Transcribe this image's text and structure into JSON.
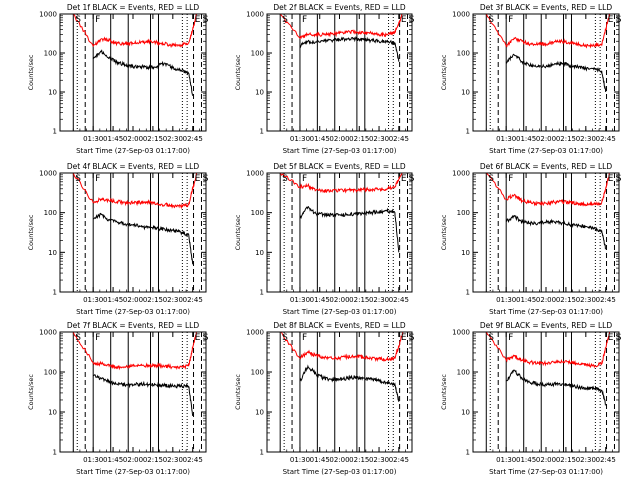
{
  "colors": {
    "black_series": "#000000",
    "red_series": "#ff0000",
    "axis": "#000000",
    "background": "#ffffff"
  },
  "chart_data": [
    {
      "type": "line",
      "title": "Det 1f BLACK = Events, RED = LLD",
      "xlabel": "Start Time (27-Sep-03 01:17:00)",
      "ylabel": "Counts/sec",
      "y_scale": "log",
      "ylim": [
        1,
        1000
      ],
      "x_ticks": [
        "01:30",
        "01:45",
        "02:00",
        "02:15",
        "02:30",
        "02:45"
      ],
      "y_ticks": [
        "1",
        "10",
        "100",
        "1000"
      ],
      "markers": [
        "S",
        "F",
        "E",
        "S"
      ],
      "x": [
        1.25,
        1.5,
        1.6,
        1.7,
        1.8,
        1.9,
        2.0,
        2.1,
        2.2,
        2.3,
        2.4,
        2.5,
        2.6,
        2.7,
        2.75,
        2.8
      ],
      "series": [
        {
          "name": "Events",
          "color": "#000000",
          "values": [
            null,
            70,
            110,
            75,
            58,
            50,
            45,
            45,
            42,
            45,
            55,
            42,
            36,
            30,
            8,
            null
          ]
        },
        {
          "name": "LLD",
          "color": "#ff0000",
          "values": [
            1000,
            150,
            230,
            210,
            180,
            170,
            175,
            190,
            200,
            185,
            170,
            155,
            160,
            180,
            400,
            1000
          ]
        }
      ]
    },
    {
      "type": "line",
      "title": "Det 2f BLACK = Events, RED = LLD",
      "xlabel": "Start Time (27-Sep-03 01:17:00)",
      "ylabel": "Counts/sec",
      "y_scale": "log",
      "ylim": [
        1,
        1000
      ],
      "x_ticks": [
        "01:30",
        "01:45",
        "02:00",
        "02:15",
        "02:30",
        "02:45"
      ],
      "y_ticks": [
        "1",
        "10",
        "100",
        "1000"
      ],
      "markers": [
        "S",
        "F",
        "E",
        "S"
      ],
      "x": [
        1.25,
        1.5,
        1.6,
        1.7,
        1.8,
        1.9,
        2.0,
        2.1,
        2.2,
        2.3,
        2.4,
        2.5,
        2.6,
        2.7,
        2.75,
        2.8
      ],
      "series": [
        {
          "name": "Events",
          "color": "#000000",
          "values": [
            null,
            150,
            200,
            190,
            200,
            210,
            220,
            230,
            230,
            220,
            210,
            200,
            190,
            180,
            60,
            null
          ]
        },
        {
          "name": "LLD",
          "color": "#ff0000",
          "values": [
            1000,
            240,
            300,
            290,
            300,
            310,
            320,
            340,
            350,
            330,
            320,
            300,
            290,
            340,
            600,
            1000
          ]
        }
      ]
    },
    {
      "type": "line",
      "title": "Det 3f BLACK = Events, RED = LLD",
      "xlabel": "Start Time (27-Sep-03 01:17:00)",
      "ylabel": "Counts/sec",
      "y_scale": "log",
      "ylim": [
        1,
        1000
      ],
      "x_ticks": [
        "01:30",
        "01:45",
        "02:00",
        "02:15",
        "02:30",
        "02:45"
      ],
      "y_ticks": [
        "1",
        "10",
        "100",
        "1000"
      ],
      "markers": [
        "S",
        "F",
        "E",
        "S"
      ],
      "x": [
        1.25,
        1.5,
        1.6,
        1.7,
        1.8,
        1.9,
        2.0,
        2.1,
        2.2,
        2.3,
        2.4,
        2.5,
        2.6,
        2.7,
        2.75,
        2.8
      ],
      "series": [
        {
          "name": "Events",
          "color": "#000000",
          "values": [
            null,
            60,
            90,
            60,
            48,
            45,
            45,
            50,
            55,
            48,
            45,
            40,
            38,
            35,
            10,
            null
          ]
        },
        {
          "name": "LLD",
          "color": "#ff0000",
          "values": [
            1000,
            150,
            240,
            200,
            170,
            165,
            170,
            190,
            200,
            180,
            165,
            150,
            155,
            170,
            400,
            1000
          ]
        }
      ]
    },
    {
      "type": "line",
      "title": "Det 4f BLACK = Events, RED = LLD",
      "xlabel": "Start Time (27-Sep-03 01:17:00)",
      "ylabel": "Counts/sec",
      "y_scale": "log",
      "ylim": [
        1,
        1000
      ],
      "x_ticks": [
        "01:30",
        "01:45",
        "02:00",
        "02:15",
        "02:30",
        "02:45"
      ],
      "y_ticks": [
        "1",
        "10",
        "100",
        "1000"
      ],
      "markers": [
        "S",
        "F",
        "E",
        "S"
      ],
      "x": [
        1.25,
        1.5,
        1.6,
        1.7,
        1.8,
        1.9,
        2.0,
        2.1,
        2.2,
        2.3,
        2.4,
        2.5,
        2.6,
        2.7,
        2.75,
        2.8
      ],
      "series": [
        {
          "name": "Events",
          "color": "#000000",
          "values": [
            null,
            70,
            90,
            65,
            58,
            52,
            50,
            45,
            42,
            40,
            38,
            36,
            32,
            28,
            5,
            null
          ]
        },
        {
          "name": "LLD",
          "color": "#ff0000",
          "values": [
            1000,
            180,
            220,
            200,
            190,
            180,
            175,
            180,
            185,
            170,
            160,
            150,
            145,
            160,
            400,
            1000
          ]
        }
      ]
    },
    {
      "type": "line",
      "title": "Det 5f BLACK = Events, RED = LLD",
      "xlabel": "Start Time (27-Sep-03 01:17:00)",
      "ylabel": "Counts/sec",
      "y_scale": "log",
      "ylim": [
        1,
        1000
      ],
      "x_ticks": [
        "01:30",
        "01:45",
        "02:00",
        "02:15",
        "02:30",
        "02:45"
      ],
      "y_ticks": [
        "1",
        "10",
        "100",
        "1000"
      ],
      "markers": [
        "S",
        "F",
        "E",
        "S"
      ],
      "x": [
        1.25,
        1.5,
        1.6,
        1.7,
        1.8,
        1.9,
        2.0,
        2.1,
        2.2,
        2.3,
        2.4,
        2.5,
        2.6,
        2.7,
        2.75,
        2.8
      ],
      "series": [
        {
          "name": "Events",
          "color": "#000000",
          "values": [
            null,
            70,
            140,
            95,
            90,
            88,
            88,
            90,
            92,
            95,
            100,
            105,
            110,
            100,
            10,
            null
          ]
        },
        {
          "name": "LLD",
          "color": "#ff0000",
          "values": [
            1000,
            450,
            480,
            370,
            350,
            350,
            360,
            370,
            375,
            380,
            380,
            390,
            400,
            450,
            700,
            1000
          ]
        }
      ]
    },
    {
      "type": "line",
      "title": "Det 6f BLACK = Events, RED = LLD",
      "xlabel": "Start Time (27-Sep-03 01:17:00)",
      "ylabel": "Counts/sec",
      "y_scale": "log",
      "ylim": [
        1,
        1000
      ],
      "x_ticks": [
        "01:30",
        "01:45",
        "02:00",
        "02:15",
        "02:30",
        "02:45"
      ],
      "y_ticks": [
        "1",
        "10",
        "100",
        "1000"
      ],
      "markers": [
        "S",
        "F",
        "E",
        "S"
      ],
      "x": [
        1.25,
        1.5,
        1.6,
        1.7,
        1.8,
        1.9,
        2.0,
        2.1,
        2.2,
        2.3,
        2.4,
        2.5,
        2.6,
        2.7,
        2.75,
        2.8
      ],
      "series": [
        {
          "name": "Events",
          "color": "#000000",
          "values": [
            null,
            60,
            80,
            60,
            55,
            55,
            58,
            60,
            55,
            50,
            48,
            45,
            40,
            35,
            12,
            null
          ]
        },
        {
          "name": "LLD",
          "color": "#ff0000",
          "values": [
            1000,
            220,
            280,
            200,
            180,
            170,
            175,
            185,
            190,
            180,
            170,
            160,
            160,
            180,
            400,
            1000
          ]
        }
      ]
    },
    {
      "type": "line",
      "title": "Det 7f BLACK = Events, RED = LLD",
      "xlabel": "Start Time (27-Sep-03 01:17:00)",
      "ylabel": "Counts/sec",
      "y_scale": "log",
      "ylim": [
        1,
        1000
      ],
      "x_ticks": [
        "01:30",
        "01:45",
        "02:00",
        "02:15",
        "02:30",
        "02:45"
      ],
      "y_ticks": [
        "1",
        "10",
        "100",
        "1000"
      ],
      "markers": [
        "S",
        "F",
        "E",
        "S"
      ],
      "x": [
        1.25,
        1.5,
        1.6,
        1.7,
        1.8,
        1.9,
        2.0,
        2.1,
        2.2,
        2.3,
        2.4,
        2.5,
        2.6,
        2.7,
        2.75,
        2.8
      ],
      "series": [
        {
          "name": "Events",
          "color": "#000000",
          "values": [
            null,
            80,
            70,
            55,
            50,
            48,
            48,
            50,
            48,
            47,
            46,
            45,
            44,
            43,
            8,
            null
          ]
        },
        {
          "name": "LLD",
          "color": "#ff0000",
          "values": [
            1000,
            170,
            160,
            140,
            135,
            135,
            140,
            145,
            150,
            145,
            140,
            135,
            135,
            140,
            400,
            1000
          ]
        }
      ]
    },
    {
      "type": "line",
      "title": "Det 8f BLACK = Events, RED = LLD",
      "xlabel": "Start Time (27-Sep-03 01:17:00)",
      "ylabel": "Counts/sec",
      "y_scale": "log",
      "ylim": [
        1,
        1000
      ],
      "x_ticks": [
        "01:30",
        "01:45",
        "02:00",
        "02:15",
        "02:30",
        "02:45"
      ],
      "y_ticks": [
        "1",
        "10",
        "100",
        "1000"
      ],
      "markers": [
        "S",
        "F",
        "E",
        "S"
      ],
      "x": [
        1.25,
        1.5,
        1.6,
        1.7,
        1.8,
        1.9,
        2.0,
        2.1,
        2.2,
        2.3,
        2.4,
        2.5,
        2.6,
        2.7,
        2.75,
        2.8
      ],
      "series": [
        {
          "name": "Events",
          "color": "#000000",
          "values": [
            null,
            60,
            140,
            90,
            70,
            65,
            65,
            70,
            75,
            70,
            65,
            60,
            55,
            50,
            18,
            null
          ]
        },
        {
          "name": "LLD",
          "color": "#ff0000",
          "values": [
            1000,
            220,
            320,
            260,
            230,
            220,
            225,
            240,
            250,
            235,
            220,
            210,
            205,
            220,
            450,
            1000
          ]
        }
      ]
    },
    {
      "type": "line",
      "title": "Det 9f BLACK = Events, RED = LLD",
      "xlabel": "Start Time (27-Sep-03 01:17:00)",
      "ylabel": "Counts/sec",
      "y_scale": "log",
      "ylim": [
        1,
        1000
      ],
      "x_ticks": [
        "01:30",
        "01:45",
        "02:00",
        "02:15",
        "02:30",
        "02:45"
      ],
      "y_ticks": [
        "1",
        "10",
        "100",
        "1000"
      ],
      "markers": [
        "S",
        "F",
        "E",
        "S"
      ],
      "x": [
        1.25,
        1.5,
        1.6,
        1.7,
        1.8,
        1.9,
        2.0,
        2.1,
        2.2,
        2.3,
        2.4,
        2.5,
        2.6,
        2.7,
        2.75,
        2.8
      ],
      "series": [
        {
          "name": "Events",
          "color": "#000000",
          "values": [
            null,
            60,
            110,
            70,
            55,
            50,
            48,
            50,
            50,
            45,
            42,
            40,
            38,
            35,
            15,
            null
          ]
        },
        {
          "name": "LLD",
          "color": "#ff0000",
          "values": [
            1000,
            200,
            250,
            200,
            175,
            165,
            165,
            175,
            180,
            170,
            160,
            150,
            145,
            160,
            400,
            1000
          ]
        }
      ]
    }
  ]
}
